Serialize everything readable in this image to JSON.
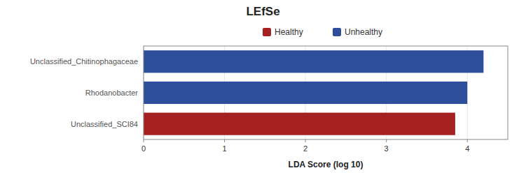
{
  "chart_data": {
    "type": "bar",
    "orientation": "horizontal",
    "title": "LEfSe",
    "categories": [
      "Unclassified_SCI84",
      "Rhodanobacter",
      "Unclassified_Chitinophagaceae"
    ],
    "series": [
      {
        "name": "Healthy",
        "color": "#A52020",
        "values": [
          3.85,
          null,
          null
        ]
      },
      {
        "name": "Unhealthy",
        "color": "#2E4D9A",
        "values": [
          null,
          4.0,
          4.2
        ]
      }
    ],
    "xlabel": "LDA Score (log 10)",
    "xlim": [
      0,
      4.5
    ],
    "xticks": [
      0,
      1,
      2,
      3,
      4
    ],
    "grid": true,
    "legend": "top"
  }
}
